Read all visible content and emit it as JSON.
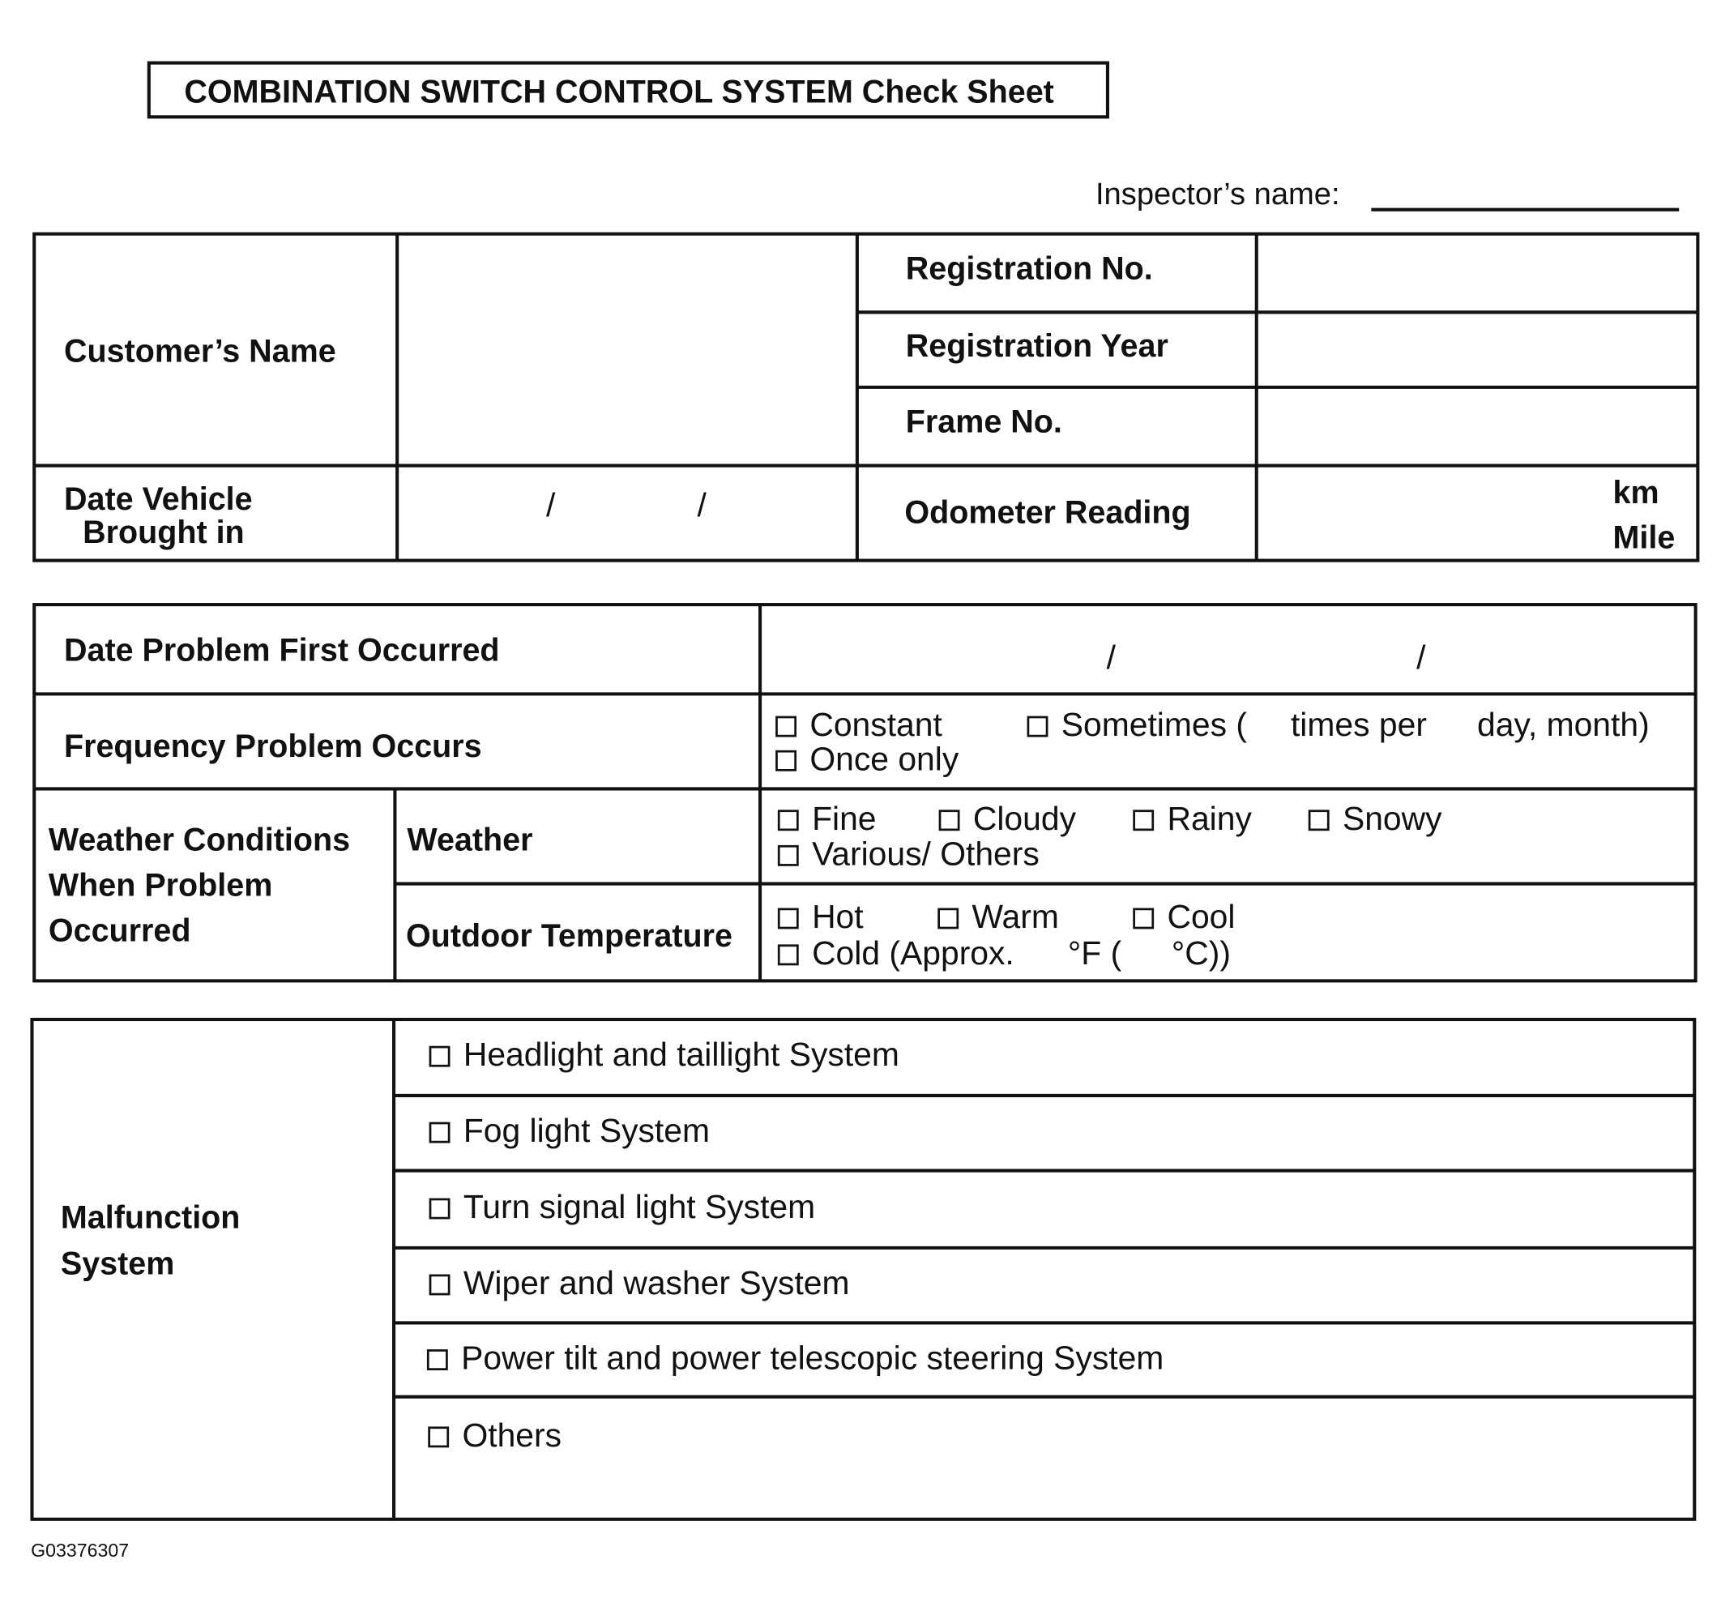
{
  "title": "COMBINATION SWITCH CONTROL SYSTEM Check Sheet",
  "inspector_label": "Inspector’s name:",
  "vehicle": {
    "customers_name": "Customer’s Name",
    "registration_no": "Registration No.",
    "registration_year": "Registration Year",
    "frame_no": "Frame No.",
    "date_vehicle_line1": "Date Vehicle",
    "date_vehicle_line2": "Brought in",
    "date_slash": "/",
    "odometer": "Odometer Reading",
    "km": "km",
    "mile": "Mile"
  },
  "problem": {
    "date_first": "Date Problem First Occurred",
    "slash": "/",
    "frequency": "Frequency Problem Occurs",
    "freq_options": {
      "constant": "Constant",
      "sometimes": "Sometimes (",
      "times_per": "times per",
      "day_month": "day, month)",
      "once": "Once only"
    },
    "weather_group_1": "Weather Conditions",
    "weather_group_2": "When Problem",
    "weather_group_3": "Occurred",
    "weather": "Weather",
    "weather_options": [
      "Fine",
      "Cloudy",
      "Rainy",
      "Snowy",
      "Various/ Others"
    ],
    "outdoor_temp": "Outdoor Temperature",
    "temp_options": [
      "Hot",
      "Warm",
      "Cool"
    ],
    "cold": "Cold (Approx.",
    "deg_f": "°F (",
    "deg_c": "°C))"
  },
  "malfunction": {
    "label_1": "Malfunction",
    "label_2": "System",
    "items": [
      "Headlight and taillight System",
      "Fog light System",
      "Turn signal light System",
      "Wiper and washer System",
      "Power tilt and power telescopic steering System",
      "Others"
    ]
  },
  "figure_id": "G03376307"
}
